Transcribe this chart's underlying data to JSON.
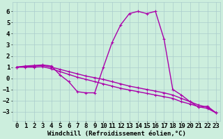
{
  "bg_color": "#cceedd",
  "grid_color": "#aacccc",
  "line_color": "#aa00aa",
  "linewidth": 1.0,
  "markersize": 3,
  "xlabel": "Windchill (Refroidissement éolien,°C)",
  "xlabel_fontsize": 6.5,
  "tick_fontsize": 6.5,
  "xlim": [
    -0.5,
    23.5
  ],
  "ylim": [
    -3.8,
    6.8
  ],
  "yticks": [
    -3,
    -2,
    -1,
    0,
    1,
    2,
    3,
    4,
    5,
    6
  ],
  "xticks": [
    0,
    1,
    2,
    3,
    4,
    5,
    6,
    7,
    8,
    9,
    10,
    11,
    12,
    13,
    14,
    15,
    16,
    17,
    18,
    19,
    20,
    21,
    22,
    23
  ],
  "s1_x": [
    0,
    1,
    2,
    3,
    4,
    5,
    6,
    7,
    8,
    9,
    10,
    11,
    12,
    13,
    14,
    15,
    16,
    17,
    18,
    19,
    20,
    21,
    22,
    23
  ],
  "s1_y": [
    1.0,
    1.1,
    1.15,
    1.2,
    1.1,
    0.3,
    -0.3,
    -1.2,
    -1.3,
    -1.3,
    1.0,
    3.2,
    4.8,
    5.8,
    6.0,
    5.8,
    6.0,
    3.5,
    -1.0,
    -1.5,
    -2.1,
    -2.6,
    -2.5,
    -3.1
  ],
  "s2_x": [
    0,
    1,
    2,
    3,
    4,
    5,
    6,
    7,
    8,
    9,
    10,
    11,
    12,
    13,
    14,
    15,
    16,
    17,
    18,
    19,
    20,
    21,
    22,
    23
  ],
  "s2_y": [
    1.0,
    1.05,
    1.1,
    1.15,
    1.0,
    0.8,
    0.6,
    0.4,
    0.2,
    0.05,
    -0.1,
    -0.3,
    -0.5,
    -0.7,
    -0.85,
    -1.0,
    -1.15,
    -1.3,
    -1.5,
    -1.8,
    -2.1,
    -2.4,
    -2.6,
    -3.1
  ],
  "s3_x": [
    0,
    1,
    2,
    3,
    4,
    5,
    6,
    7,
    8,
    9,
    10,
    11,
    12,
    13,
    14,
    15,
    16,
    17,
    18,
    19,
    20,
    21,
    22,
    23
  ],
  "s3_y": [
    1.0,
    1.0,
    1.0,
    1.05,
    0.85,
    0.6,
    0.35,
    0.1,
    -0.1,
    -0.3,
    -0.5,
    -0.7,
    -0.9,
    -1.05,
    -1.2,
    -1.35,
    -1.5,
    -1.65,
    -1.8,
    -2.1,
    -2.3,
    -2.55,
    -2.7,
    -3.1
  ]
}
